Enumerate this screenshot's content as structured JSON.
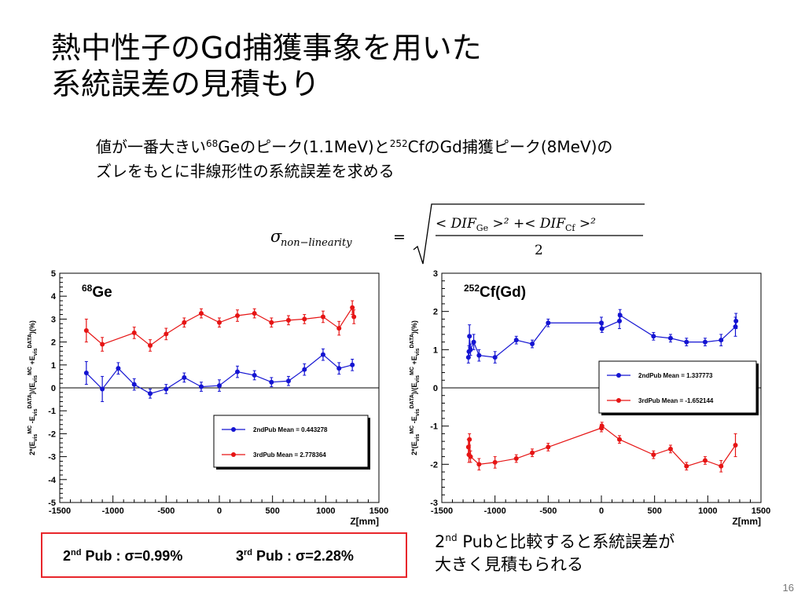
{
  "slide": {
    "title_line1": "熱中性子のGd捕獲事象を用いた",
    "title_line2": "系統誤差の見積もり",
    "subtitle": {
      "part1": "値が一番大きい",
      "ge_mass": "68",
      "part2": "Geのピーク(1.1MeV)と",
      "cf_mass": "252",
      "part3": "CfのGd捕獲ピーク(8MeV)の",
      "line2": "ズレをもとに非線形性の系統誤差を求める"
    },
    "formula": {
      "lhs_symbol": "σ",
      "lhs_subscript": "non−linearity",
      "equals": "=",
      "numerator": "< DIF",
      "sub_ge": "Ge",
      "mid": " >² +< DIF",
      "sub_cf": "Cf",
      "end": " >²",
      "denominator": "2"
    },
    "summary_box": {
      "p2_num": "2",
      "p2_sup": "nd",
      "p2_text": " Pub : σ=0.99%",
      "p3_num": "3",
      "p3_sup": "rd",
      "p3_text": " Pub : σ=2.28%"
    },
    "note": {
      "num": "2",
      "sup": "nd",
      "line1_rest": " Pubと比較すると系統誤差が",
      "line2": "大きく見積もられる"
    },
    "page_number": "16",
    "colors": {
      "blue": "#1414d2",
      "red": "#e61414",
      "box_border": "#e8262b"
    }
  },
  "chart_data": [
    {
      "type": "scatter",
      "label_mass": "68",
      "label_elem": "Ge",
      "xlabel": "Z[mm]",
      "ylabel": "2*(E_vis^MC -E_vis^DATA)/(E_vis^MC +E_vis^DATA)(%)",
      "xlim": [
        -1500,
        1500
      ],
      "ylim": [
        -5,
        5
      ],
      "xticks": [
        -1500,
        -1000,
        -500,
        0,
        500,
        1000,
        1500
      ],
      "yticks": [
        -5,
        -4,
        -3,
        -2,
        -1,
        0,
        1,
        2,
        3,
        4,
        5
      ],
      "legend_position": "right-middle",
      "series": [
        {
          "name": "2ndPub Mean = 0.443278",
          "color": "#1414d2",
          "x": [
            -1250,
            -1100,
            -950,
            -800,
            -650,
            -500,
            -330,
            -170,
            0,
            170,
            330,
            490,
            650,
            800,
            975,
            1125,
            1250
          ],
          "y": [
            0.65,
            -0.05,
            0.85,
            0.15,
            -0.25,
            -0.05,
            0.45,
            0.05,
            0.1,
            0.7,
            0.55,
            0.25,
            0.3,
            0.8,
            1.45,
            0.85,
            1.0
          ],
          "err": [
            0.5,
            0.55,
            0.25,
            0.25,
            0.2,
            0.2,
            0.2,
            0.2,
            0.25,
            0.25,
            0.2,
            0.2,
            0.2,
            0.25,
            0.25,
            0.25,
            0.25
          ]
        },
        {
          "name": "3rdPub Mean = 2.778364",
          "color": "#e61414",
          "x": [
            -1250,
            -1100,
            -800,
            -650,
            -500,
            -330,
            -170,
            0,
            170,
            330,
            490,
            650,
            800,
            975,
            1125,
            1250,
            1265
          ],
          "y": [
            2.5,
            1.9,
            2.4,
            1.85,
            2.35,
            2.85,
            3.25,
            2.85,
            3.15,
            3.25,
            2.85,
            2.95,
            3.0,
            3.1,
            2.6,
            3.5,
            3.1
          ],
          "err": [
            0.5,
            0.3,
            0.25,
            0.25,
            0.25,
            0.2,
            0.2,
            0.2,
            0.25,
            0.2,
            0.2,
            0.2,
            0.2,
            0.25,
            0.3,
            0.3,
            0.3
          ]
        }
      ]
    },
    {
      "type": "scatter",
      "label_mass": "252",
      "label_elem": "Cf(Gd)",
      "xlabel": "Z[mm]",
      "ylabel": "2*(E_vis^MC -E_vis^DATA)/(E_vis^MC +E_vis^DATA)(%)",
      "xlim": [
        -1500,
        1500
      ],
      "ylim": [
        -3,
        3
      ],
      "xticks": [
        -1500,
        -1000,
        -500,
        0,
        500,
        1000,
        1500
      ],
      "yticks": [
        -3,
        -2,
        -1,
        0,
        1,
        2,
        3
      ],
      "legend_position": "right-middle",
      "series": [
        {
          "name": "2ndPub Mean = 1.337773",
          "color": "#1414d2",
          "x": [
            -1250,
            -1245,
            -1240,
            -1230,
            -1200,
            -1150,
            -1000,
            -800,
            -650,
            -500,
            0,
            5,
            170,
            175,
            490,
            650,
            800,
            975,
            1125,
            1260,
            1265
          ],
          "y": [
            0.8,
            0.95,
            1.35,
            1.0,
            1.2,
            0.85,
            0.8,
            1.25,
            1.15,
            1.7,
            1.7,
            1.55,
            1.75,
            1.9,
            1.35,
            1.3,
            1.2,
            1.2,
            1.25,
            1.6,
            1.75
          ],
          "err": [
            0.15,
            0.15,
            0.3,
            0.15,
            0.2,
            0.15,
            0.15,
            0.1,
            0.1,
            0.1,
            0.15,
            0.1,
            0.2,
            0.15,
            0.1,
            0.1,
            0.1,
            0.1,
            0.15,
            0.25,
            0.2
          ]
        },
        {
          "name": "3rdPub Mean = -1.652144",
          "color": "#e61414",
          "x": [
            -1250,
            -1245,
            -1240,
            -1230,
            -1150,
            -1000,
            -800,
            -650,
            -500,
            0,
            5,
            170,
            490,
            650,
            800,
            975,
            1125,
            1260
          ],
          "y": [
            -1.55,
            -1.75,
            -1.35,
            -1.8,
            -2.0,
            -1.95,
            -1.85,
            -1.7,
            -1.55,
            -1.05,
            -1.0,
            -1.35,
            -1.75,
            -1.6,
            -2.05,
            -1.9,
            -2.05,
            -1.5
          ],
          "err": [
            0.2,
            0.2,
            0.15,
            0.15,
            0.15,
            0.15,
            0.1,
            0.1,
            0.1,
            0.1,
            0.1,
            0.1,
            0.1,
            0.1,
            0.1,
            0.1,
            0.15,
            0.3
          ]
        }
      ]
    }
  ]
}
